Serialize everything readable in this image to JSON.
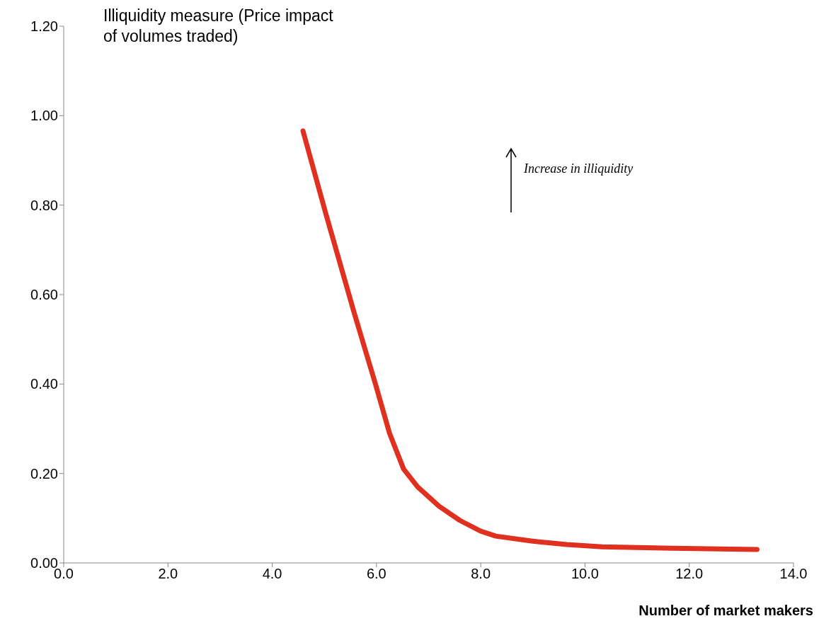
{
  "chart_data": {
    "type": "line",
    "xlabel": "Number of market makers",
    "ylabel": "Illiquidity measure (Price impact of volumes traded)",
    "annotations": [
      "Increase in illiquidity"
    ],
    "x": [
      4.59,
      5.03,
      5.57,
      5.98,
      6.25,
      6.52,
      6.79,
      7.2,
      7.6,
      8.0,
      8.29,
      8.97,
      9.65,
      10.33,
      11.68,
      13.3
    ],
    "series": [
      {
        "color": "#e03020",
        "values": [
          0.966,
          0.78,
          0.56,
          0.4,
          0.29,
          0.21,
          0.17,
          0.127,
          0.095,
          0.071,
          0.06,
          0.049,
          0.041,
          0.036,
          0.033,
          0.03
        ]
      }
    ],
    "xlim": [
      0,
      14
    ],
    "ylim": [
      0,
      1.2
    ],
    "xticks": [
      {
        "value": 0,
        "label": "0.0"
      },
      {
        "value": 2,
        "label": "2.0"
      },
      {
        "value": 4,
        "label": "4.0"
      },
      {
        "value": 6,
        "label": "6.0"
      },
      {
        "value": 8,
        "label": "8.0"
      },
      {
        "value": 10,
        "label": "10.0"
      },
      {
        "value": 12,
        "label": "12.0"
      },
      {
        "value": 14,
        "label": "14.0"
      }
    ],
    "yticks": [
      {
        "value": 0,
        "label": "0.00"
      },
      {
        "value": 0.2,
        "label": "0.20"
      },
      {
        "value": 0.4,
        "label": "0.40"
      },
      {
        "value": 0.6,
        "label": "0.60"
      },
      {
        "value": 0.8,
        "label": "0.80"
      },
      {
        "value": 1,
        "label": "1.00"
      },
      {
        "value": 1.2,
        "label": "1.20"
      }
    ],
    "marker": "none",
    "line_style": "solid"
  }
}
